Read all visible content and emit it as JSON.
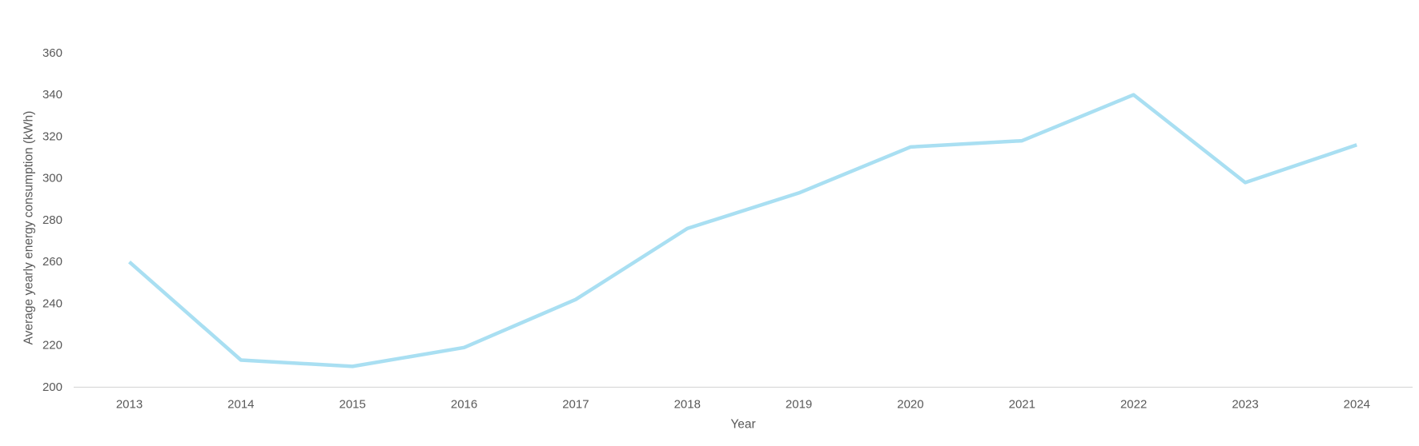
{
  "chart_data": {
    "type": "line",
    "title": "",
    "xlabel": "Year",
    "ylabel": "Average yearly energy consumption (kWh)",
    "categories": [
      "2013",
      "2014",
      "2015",
      "2016",
      "2017",
      "2018",
      "2019",
      "2020",
      "2021",
      "2022",
      "2023",
      "2024"
    ],
    "values": [
      260,
      213,
      210,
      219,
      242,
      276,
      293,
      315,
      318,
      340,
      298,
      316
    ],
    "ylim": [
      200,
      360
    ],
    "yticks": [
      200,
      220,
      240,
      260,
      280,
      300,
      320,
      340,
      360
    ],
    "grid": false,
    "legend": false,
    "colors": {
      "line": "#A9DFF2",
      "axis_line": "#D9D9D9",
      "tick_label": "#595959",
      "axis_title": "#595959",
      "background": "#FFFFFF"
    }
  }
}
